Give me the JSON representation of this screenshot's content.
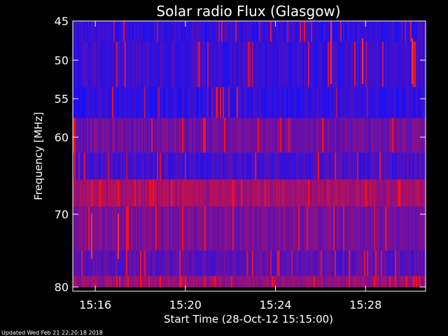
{
  "chart_data": {
    "type": "heatmap",
    "title": "Solar radio Flux (Glasgow)",
    "xlabel": "Start Time (28-Oct-12 15:15:00)",
    "ylabel": "Frequency [MHz]",
    "xlim": [
      "15:15:00",
      "15:30:40"
    ],
    "ylim": [
      45,
      80
    ],
    "y_axis_inverted": true,
    "x_ticks": [
      {
        "label": "15:16",
        "value": "15:16:00"
      },
      {
        "label": "15:20",
        "value": "15:20:00"
      },
      {
        "label": "15:24",
        "value": "15:24:00"
      },
      {
        "label": "15:28",
        "value": "15:28:00"
      }
    ],
    "y_ticks": [
      {
        "label": "45",
        "value": 45
      },
      {
        "label": "50",
        "value": 50
      },
      {
        "label": "55",
        "value": 55
      },
      {
        "label": "60",
        "value": 60
      },
      {
        "label": "70",
        "value": 70
      },
      {
        "label": "80",
        "value": 80
      }
    ],
    "frequency_bands_mhz": [
      {
        "from": 45.0,
        "to": 47.5,
        "mean_level": 0.15
      },
      {
        "from": 47.5,
        "to": 53.5,
        "mean_level": 0.18
      },
      {
        "from": 53.5,
        "to": 57.5,
        "mean_level": 0.14
      },
      {
        "from": 57.5,
        "to": 62.0,
        "mean_level": 0.4
      },
      {
        "from": 62.0,
        "to": 65.5,
        "mean_level": 0.22
      },
      {
        "from": 65.5,
        "to": 69.0,
        "mean_level": 0.62
      },
      {
        "from": 69.0,
        "to": 75.0,
        "mean_level": 0.42
      },
      {
        "from": 75.0,
        "to": 78.5,
        "mean_level": 0.32
      },
      {
        "from": 78.5,
        "to": 80.0,
        "mean_level": 0.55
      }
    ],
    "colors": {
      "low": "#1010ff",
      "high": "#ff1010",
      "axes": "#ffffff",
      "background": "#000000"
    }
  },
  "footer": {
    "updated": "Updated Wed Feb 21 22:20:18 2018"
  }
}
